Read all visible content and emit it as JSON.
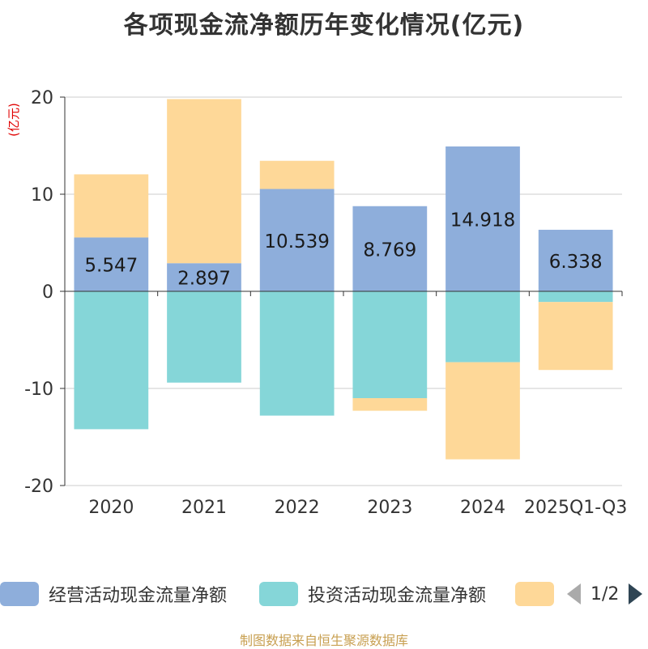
{
  "chart_data": {
    "type": "bar",
    "stacked": true,
    "title": "各项现金流净额历年变化情况(亿元)",
    "ylabel": "(亿元)",
    "xlabel": "",
    "ylim": [
      -20,
      20
    ],
    "yticks": [
      20,
      10,
      0,
      -10,
      -20
    ],
    "grid": true,
    "categories": [
      "2020",
      "2021",
      "2022",
      "2023",
      "2024",
      "2025Q1-Q3"
    ],
    "series": [
      {
        "name": "经营活动现金流量净额",
        "color": "#8eaedb",
        "values": [
          5.547,
          2.897,
          10.539,
          8.769,
          14.918,
          6.338
        ],
        "show_labels": true
      },
      {
        "name": "投资活动现金流量净额",
        "color": "#85d6d8",
        "values": [
          -14.2,
          -9.4,
          -12.8,
          -11.0,
          -7.3,
          -1.1
        ],
        "show_labels": false
      },
      {
        "name": "",
        "color": "#fed898",
        "values": [
          6.5,
          16.9,
          2.9,
          -1.3,
          -10.0,
          -7.0
        ],
        "show_labels": false
      }
    ],
    "legend_position": "bottom"
  },
  "legend": {
    "pager_text": "1/2"
  },
  "source_note": "制图数据来自恒生聚源数据库"
}
